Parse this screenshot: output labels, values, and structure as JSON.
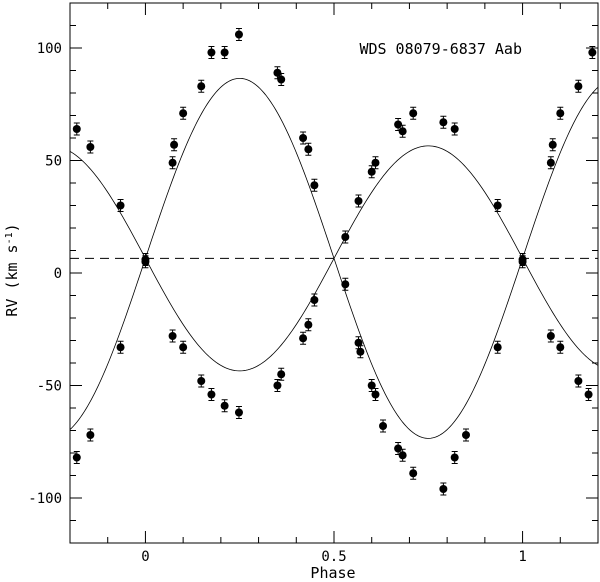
{
  "chart_data": {
    "type": "scatter",
    "annotation": "WDS 08079-6837 Aab",
    "xlabel": "Phase",
    "ylabel": "RV (km s",
    "ylabel_sup": "-1",
    "ylabel_close": ")",
    "xlim": [
      -0.2,
      1.2
    ],
    "ylim": [
      -120,
      120
    ],
    "x_ticks": [
      {
        "value": 0,
        "label": "0"
      },
      {
        "value": 0.5,
        "label": "0.5"
      },
      {
        "value": 1,
        "label": "1"
      }
    ],
    "y_ticks": [
      {
        "value": 100,
        "label": "100"
      },
      {
        "value": 50,
        "label": "50"
      },
      {
        "value": 0,
        "label": "0"
      },
      {
        "value": -50,
        "label": "-50"
      },
      {
        "value": -100,
        "label": "-100"
      }
    ],
    "systemic_velocity": 6.5,
    "curves": {
      "primary_K": 50,
      "secondary_K": 80
    },
    "series": [
      {
        "marker": "filled-circle",
        "points": [
          [
            -0.182,
            64
          ],
          [
            -0.146,
            56
          ],
          [
            -0.066,
            30
          ],
          [
            0.0,
            5
          ],
          [
            0.072,
            -28
          ],
          [
            0.1,
            -33
          ],
          [
            0.148,
            -48
          ],
          [
            0.175,
            -54
          ],
          [
            0.21,
            -59
          ],
          [
            0.248,
            -62
          ],
          [
            0.35,
            -50
          ],
          [
            0.36,
            -45
          ],
          [
            0.418,
            -29
          ],
          [
            0.432,
            -23
          ],
          [
            0.448,
            -12
          ],
          [
            0.53,
            16
          ],
          [
            0.565,
            32
          ],
          [
            0.6,
            45
          ],
          [
            0.61,
            49
          ],
          [
            0.67,
            66
          ],
          [
            0.682,
            63
          ],
          [
            0.71,
            71
          ],
          [
            0.79,
            67
          ],
          [
            0.82,
            64
          ],
          [
            0.934,
            30
          ],
          [
            1.0,
            5
          ],
          [
            1.075,
            -28
          ],
          [
            1.1,
            -33
          ],
          [
            1.148,
            -48
          ],
          [
            1.175,
            -54
          ]
        ]
      },
      {
        "marker": "filled-circle",
        "points": [
          [
            -0.182,
            -82
          ],
          [
            -0.146,
            -72
          ],
          [
            -0.066,
            -33
          ],
          [
            0.0,
            6
          ],
          [
            0.072,
            49
          ],
          [
            0.076,
            57
          ],
          [
            0.1,
            71
          ],
          [
            0.148,
            83
          ],
          [
            0.175,
            98
          ],
          [
            0.21,
            98
          ],
          [
            0.248,
            106
          ],
          [
            0.35,
            89
          ],
          [
            0.36,
            86
          ],
          [
            0.418,
            60
          ],
          [
            0.432,
            55
          ],
          [
            0.448,
            39
          ],
          [
            0.53,
            -5
          ],
          [
            0.565,
            -31
          ],
          [
            0.57,
            -35
          ],
          [
            0.6,
            -50
          ],
          [
            0.61,
            -54
          ],
          [
            0.63,
            -68
          ],
          [
            0.67,
            -78
          ],
          [
            0.682,
            -81
          ],
          [
            0.71,
            -89
          ],
          [
            0.79,
            -96
          ],
          [
            0.82,
            -82
          ],
          [
            0.85,
            -72
          ],
          [
            0.934,
            -33
          ],
          [
            1.0,
            6
          ],
          [
            1.075,
            49
          ],
          [
            1.08,
            57
          ],
          [
            1.1,
            71
          ],
          [
            1.148,
            83
          ],
          [
            1.185,
            98
          ]
        ]
      }
    ]
  }
}
